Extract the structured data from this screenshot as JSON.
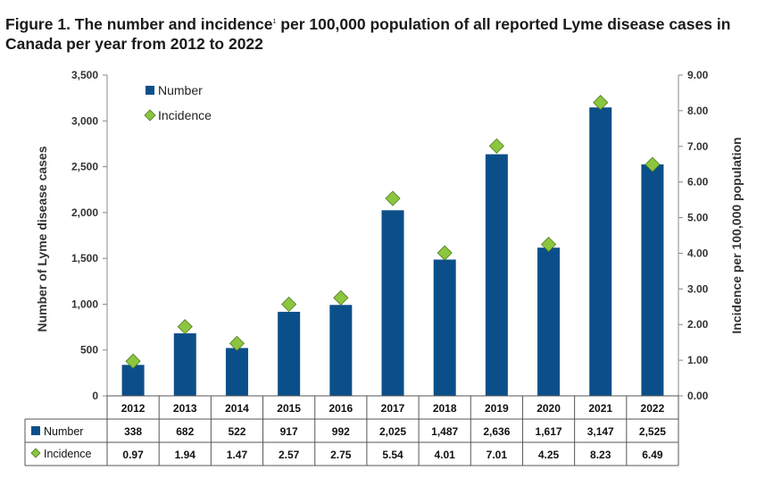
{
  "title_main": "Figure 1. The number and incidence",
  "title_sup": "1",
  "title_rest": " per 100,000 population of all reported Lyme disease cases in Canada per year from 2012 to 2022",
  "colors": {
    "bar": "#0b4f8a",
    "marker": "#8cc63f",
    "marker_edge": "#4f7a1c",
    "axis": "#888888"
  },
  "chart_data": {
    "type": "bar",
    "categories": [
      "2012",
      "2013",
      "2014",
      "2015",
      "2016",
      "2017",
      "2018",
      "2019",
      "2020",
      "2021",
      "2022"
    ],
    "series": [
      {
        "name": "Number",
        "kind": "bar",
        "axis": "left",
        "values": [
          338,
          682,
          522,
          917,
          992,
          2025,
          1487,
          2636,
          1617,
          3147,
          2525
        ],
        "labels": [
          "338",
          "682",
          "522",
          "917",
          "992",
          "2,025",
          "1,487",
          "2,636",
          "1,617",
          "3,147",
          "2,525"
        ]
      },
      {
        "name": "Incidence",
        "kind": "marker",
        "axis": "right",
        "values": [
          0.97,
          1.94,
          1.47,
          2.57,
          2.75,
          5.54,
          4.01,
          7.01,
          4.25,
          8.23,
          6.49
        ],
        "labels": [
          "0.97",
          "1.94",
          "1.47",
          "2.57",
          "2.75",
          "5.54",
          "4.01",
          "7.01",
          "4.25",
          "8.23",
          "6.49"
        ]
      }
    ],
    "ylabel": "Number of Lyme disease cases",
    "y2label": "Incidence per 100,000 population",
    "ylim": [
      0,
      3500
    ],
    "y2lim": [
      0,
      9
    ],
    "yticks": [
      "0",
      "500",
      "1,000",
      "1,500",
      "2,000",
      "2,500",
      "3,000",
      "3,500"
    ],
    "y2ticks": [
      "0.00",
      "1.00",
      "2.00",
      "3.00",
      "4.00",
      "5.00",
      "6.00",
      "7.00",
      "8.00",
      "9.00"
    ],
    "legend_position": "top-left",
    "grid": false,
    "data_table": true
  }
}
